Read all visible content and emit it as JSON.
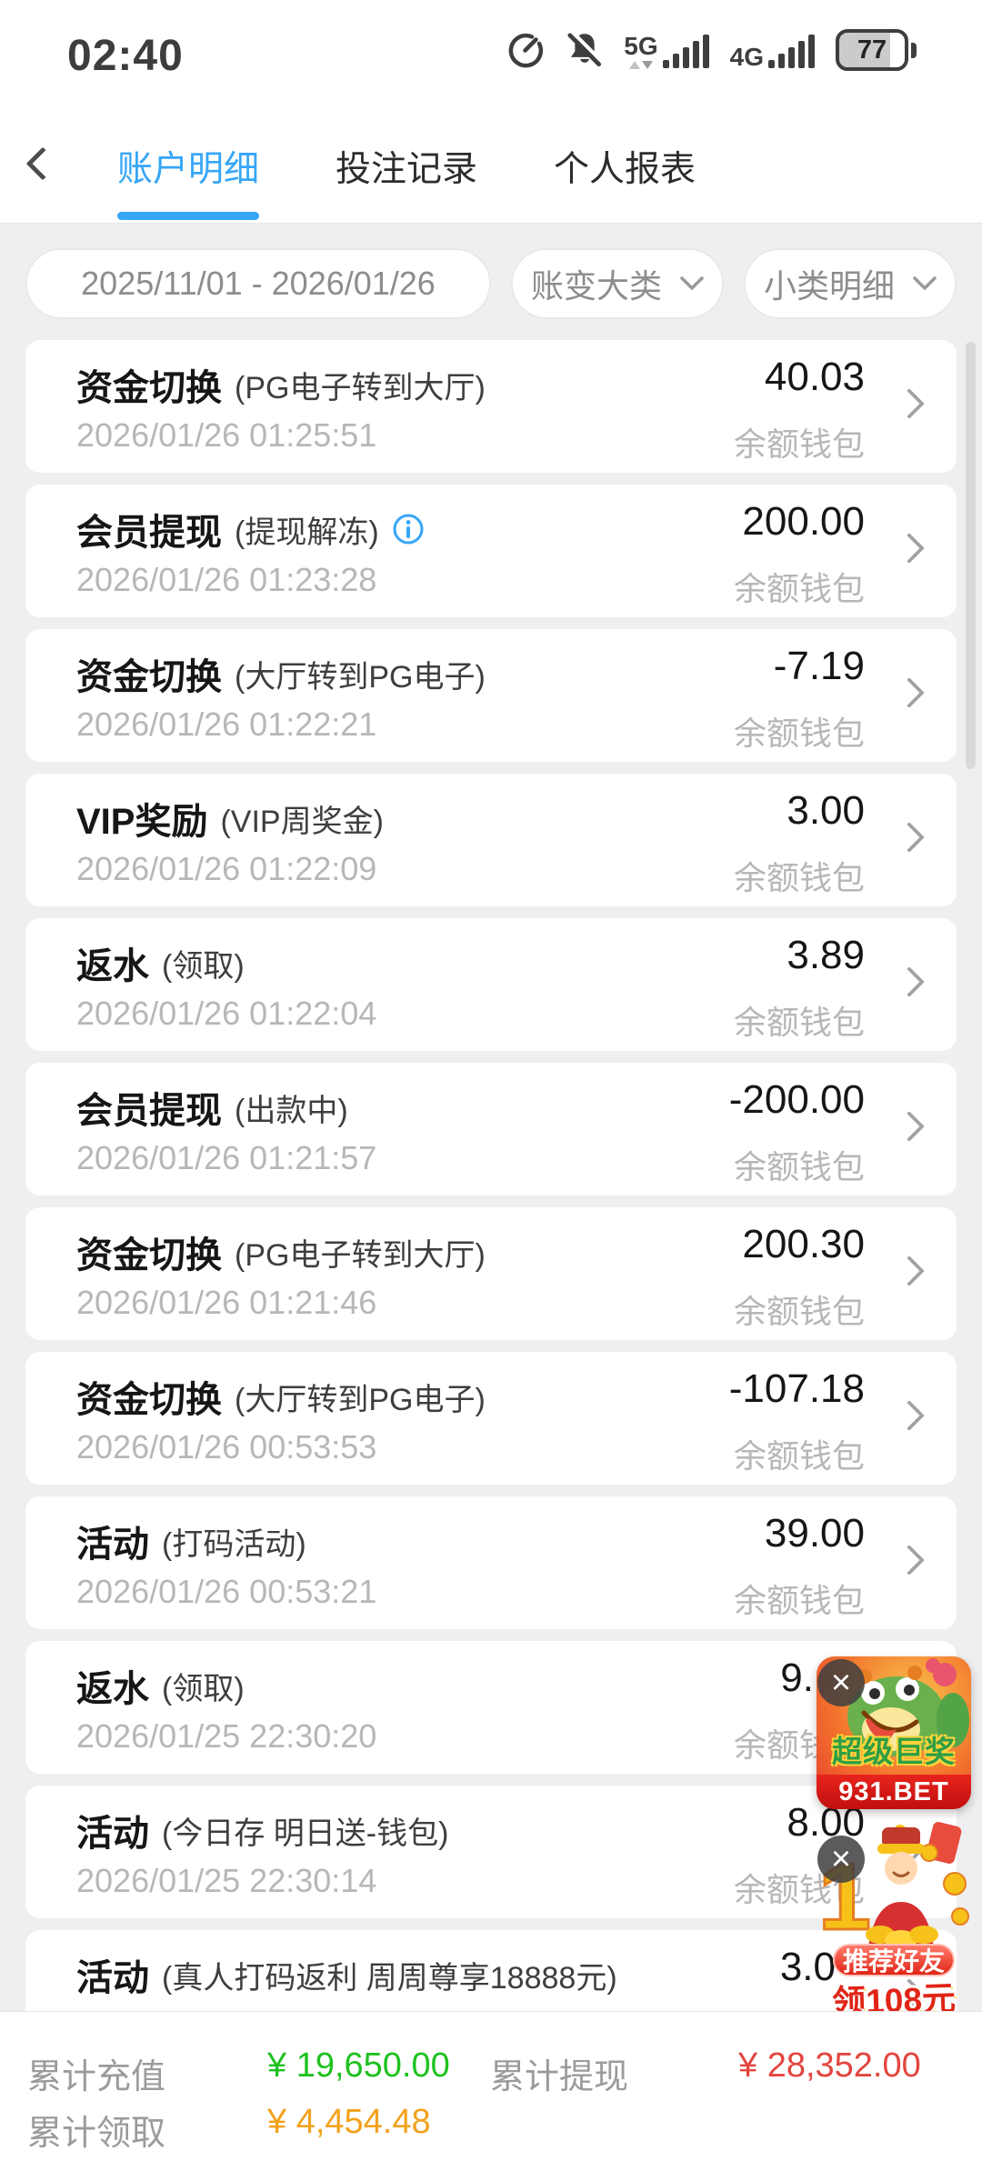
{
  "status_bar": {
    "time": "02:40",
    "battery_percent": "77",
    "network_5g_label": "5G",
    "network_4g_label": "4G",
    "icons": [
      "data-saver-icon",
      "notifications-off-icon",
      "signal-5g-icon",
      "signal-4g-icon",
      "battery-icon"
    ]
  },
  "nav": {
    "tabs": [
      {
        "label": "账户明细",
        "active": true
      },
      {
        "label": "投注记录",
        "active": false
      },
      {
        "label": "个人报表",
        "active": false
      }
    ]
  },
  "filters": {
    "date_range": "2025/11/01 - 2026/01/26",
    "category_dropdown": "账变大类",
    "subcategory_dropdown": "小类明细"
  },
  "transactions": [
    {
      "title": "资金切换",
      "subtitle": "(PG电子转到大厅)",
      "time": "2026/01/26 01:25:51",
      "amount": "40.03",
      "wallet": "余额钱包",
      "info_icon": false
    },
    {
      "title": "会员提现",
      "subtitle": "(提现解冻)",
      "time": "2026/01/26 01:23:28",
      "amount": "200.00",
      "wallet": "余额钱包",
      "info_icon": true
    },
    {
      "title": "资金切换",
      "subtitle": "(大厅转到PG电子)",
      "time": "2026/01/26 01:22:21",
      "amount": "-7.19",
      "wallet": "余额钱包",
      "info_icon": false
    },
    {
      "title": "VIP奖励",
      "subtitle": "(VIP周奖金)",
      "time": "2026/01/26 01:22:09",
      "amount": "3.00",
      "wallet": "余额钱包",
      "info_icon": false
    },
    {
      "title": "返水",
      "subtitle": "(领取)",
      "time": "2026/01/26 01:22:04",
      "amount": "3.89",
      "wallet": "余额钱包",
      "info_icon": false
    },
    {
      "title": "会员提现",
      "subtitle": "(出款中)",
      "time": "2026/01/26 01:21:57",
      "amount": "-200.00",
      "wallet": "余额钱包",
      "info_icon": false
    },
    {
      "title": "资金切换",
      "subtitle": "(PG电子转到大厅)",
      "time": "2026/01/26 01:21:46",
      "amount": "200.30",
      "wallet": "余额钱包",
      "info_icon": false
    },
    {
      "title": "资金切换",
      "subtitle": "(大厅转到PG电子)",
      "time": "2026/01/26 00:53:53",
      "amount": "-107.18",
      "wallet": "余额钱包",
      "info_icon": false
    },
    {
      "title": "活动",
      "subtitle": "(打码活动)",
      "time": "2026/01/26 00:53:21",
      "amount": "39.00",
      "wallet": "余额钱包",
      "info_icon": false
    },
    {
      "title": "返水",
      "subtitle": "(领取)",
      "time": "2026/01/25 22:30:20",
      "amount": "9.",
      "wallet": "余额钱包",
      "info_icon": false
    },
    {
      "title": "活动",
      "subtitle": "(今日存 明日送-钱包)",
      "time": "2026/01/25 22:30:14",
      "amount": "8.00",
      "wallet": "余额钱包",
      "info_icon": false
    },
    {
      "title": "活动",
      "subtitle": "(真人打码返利 周周尊享18888元)",
      "time": "",
      "amount": "3.0",
      "wallet": "",
      "info_icon": false
    }
  ],
  "footer": {
    "items": [
      {
        "label": "累计充值",
        "value": "¥ 19,650.00",
        "color": "#1fc11f"
      },
      {
        "label": "累计提现",
        "value": "¥ 28,352.00",
        "color": "#e2463f"
      },
      {
        "label": "累计领取",
        "value": "¥ 4,454.48",
        "color": "#f2a21c"
      }
    ]
  },
  "ads": {
    "ad1": {
      "title": "超级巨奖",
      "site": "931.BET"
    },
    "ad2": {
      "ribbon": "推荐好友",
      "line2": "领108元"
    },
    "close_label": "×"
  },
  "colors": {
    "accent_blue": "#37a6f7",
    "deposit_green": "#1fc11f",
    "withdraw_red": "#e2463f",
    "claim_orange": "#f2a21c"
  }
}
